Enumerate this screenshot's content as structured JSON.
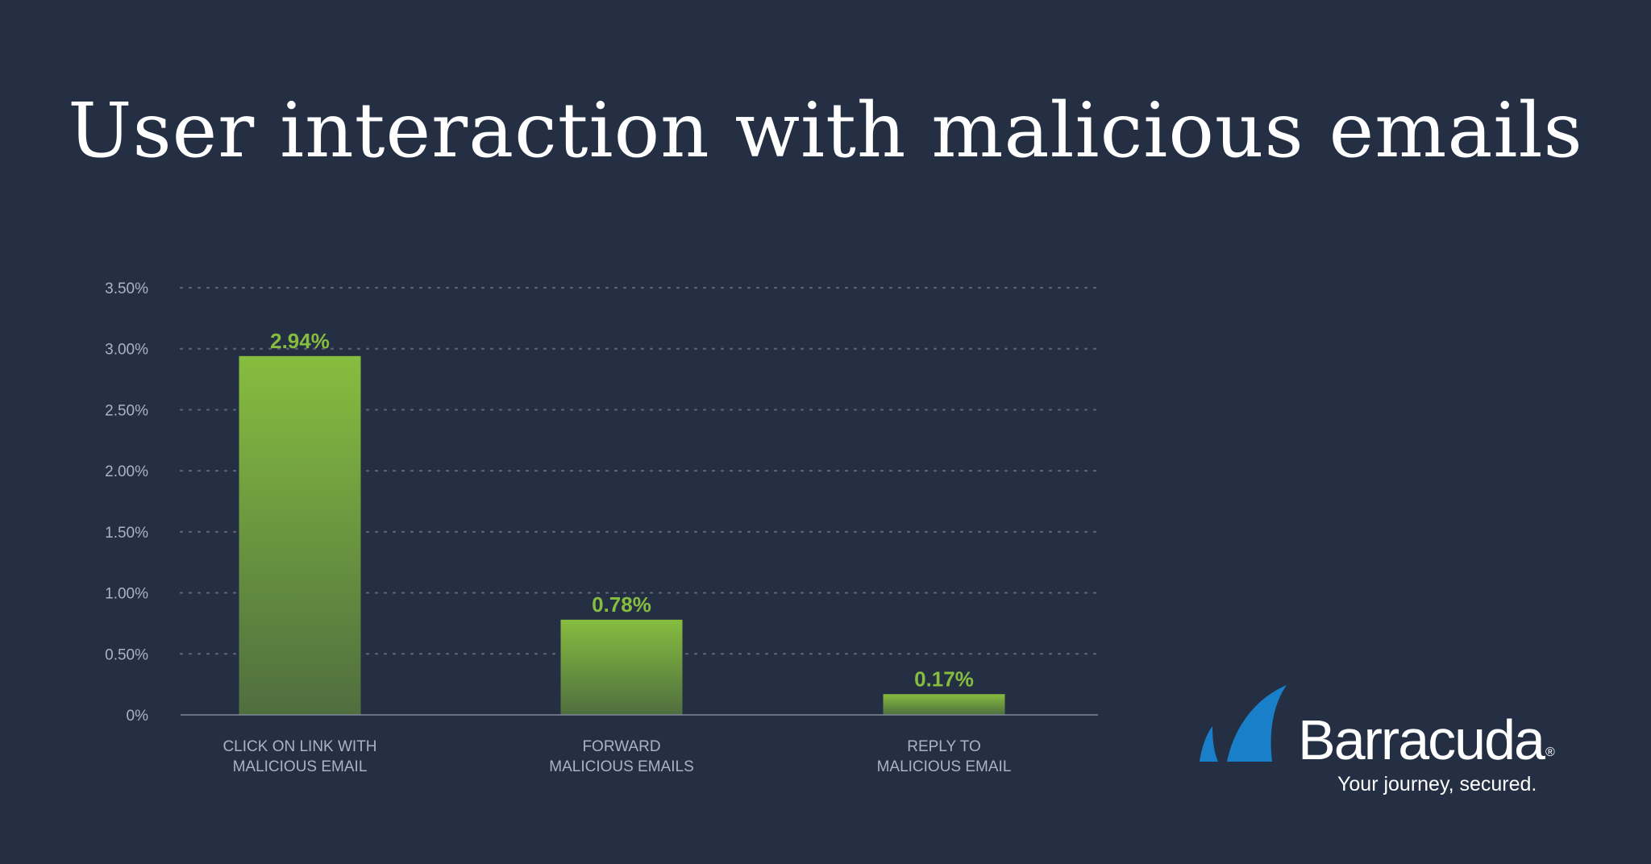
{
  "chart_data": {
    "type": "bar",
    "title": "User interaction with malicious emails",
    "categories": [
      [
        "CLICK ON LINK WITH",
        "MALICIOUS EMAIL"
      ],
      [
        "FORWARD",
        "MALICIOUS EMAILS"
      ],
      [
        "REPLY TO",
        "MALICIOUS EMAIL"
      ]
    ],
    "values": [
      2.94,
      0.78,
      0.17
    ],
    "value_labels": [
      "2.94%",
      "0.78%",
      "0.17%"
    ],
    "yticks": [
      0,
      0.5,
      1.0,
      1.5,
      2.0,
      2.5,
      3.0,
      3.5
    ],
    "ytick_labels": [
      "0%",
      "0.50%",
      "1.00%",
      "1.50%",
      "2.00%",
      "2.50%",
      "3.00%",
      "3.50%"
    ],
    "ylim": [
      0,
      3.5
    ],
    "grid": true,
    "bar_color_top": "#86bd3f",
    "bar_color_bottom": "#4f6e3f",
    "value_label_color": "#86bd3f"
  },
  "logo": {
    "wordmark": "Barracuda",
    "registered": "®",
    "tagline": "Your journey, secured.",
    "mark_icon": "barracuda-fin-icon",
    "mark_color": "#1a7fc9"
  },
  "colors": {
    "background": "#242f44",
    "title": "#ffffff",
    "axis_text": "#aab3c2"
  }
}
